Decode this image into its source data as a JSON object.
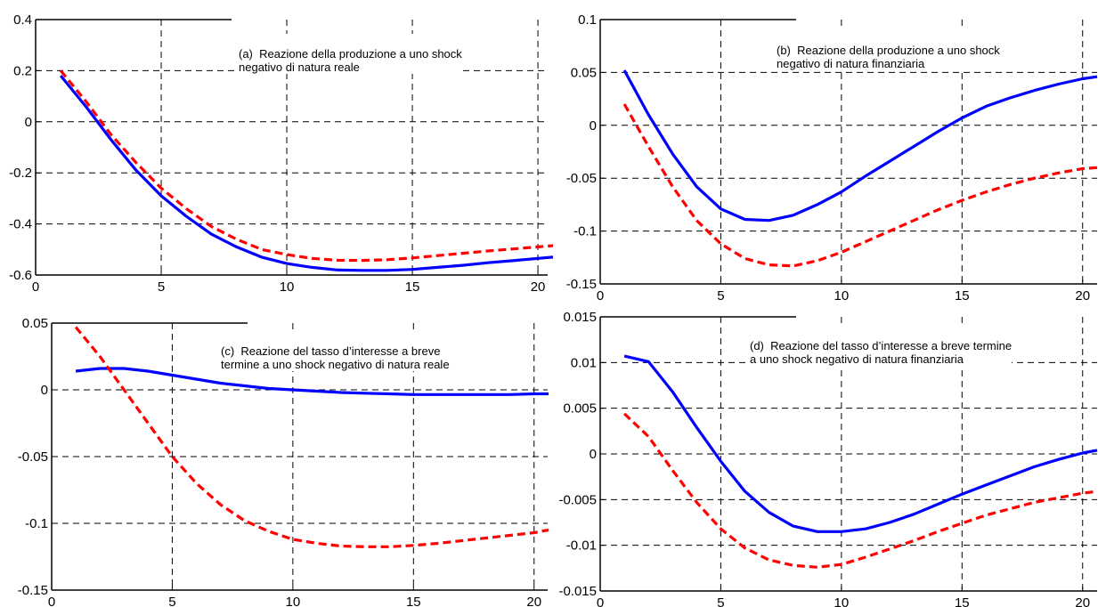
{
  "chart_data": [
    {
      "type": "line",
      "title_prefix": "(a)",
      "title": "Reazione della produzione a uno shock\nnegativo di natura reale",
      "xlim": [
        0,
        20.6
      ],
      "ylim": [
        -0.6,
        0.4
      ],
      "xticks": [
        0,
        5,
        10,
        15,
        20
      ],
      "xtick_labels": [
        "0",
        "5",
        "10",
        "15",
        "20"
      ],
      "yticks": [
        -0.6,
        -0.4,
        -0.2,
        0,
        0.2,
        0.4
      ],
      "ytick_labels": [
        "-0.6",
        "-0.4",
        "-0.2",
        "0",
        "0.2",
        "0.4"
      ],
      "grid": true,
      "series": [
        {
          "style": "solid",
          "color": "#0000ff",
          "x": [
            1,
            2,
            3,
            4,
            5,
            6,
            7,
            8,
            9,
            10,
            11,
            12,
            13,
            14,
            15,
            16,
            17,
            18,
            19,
            20,
            20.6
          ],
          "values": [
            0.18,
            0.06,
            -0.07,
            -0.19,
            -0.29,
            -0.37,
            -0.44,
            -0.49,
            -0.53,
            -0.555,
            -0.57,
            -0.58,
            -0.582,
            -0.582,
            -0.578,
            -0.57,
            -0.562,
            -0.552,
            -0.544,
            -0.535,
            -0.53
          ]
        },
        {
          "style": "dashed",
          "color": "#ff0000",
          "x": [
            1,
            2,
            3,
            4,
            5,
            6,
            7,
            8,
            9,
            10,
            11,
            12,
            13,
            14,
            15,
            16,
            17,
            18,
            19,
            20,
            20.6
          ],
          "values": [
            0.2,
            0.08,
            -0.05,
            -0.16,
            -0.26,
            -0.34,
            -0.41,
            -0.46,
            -0.5,
            -0.52,
            -0.535,
            -0.542,
            -0.543,
            -0.54,
            -0.533,
            -0.524,
            -0.515,
            -0.506,
            -0.498,
            -0.49,
            -0.485
          ]
        }
      ]
    },
    {
      "type": "line",
      "title_prefix": "(b)",
      "title": "Reazione della produzione a uno shock\nnegativo di natura finanziaria",
      "xlim": [
        0,
        20.6
      ],
      "ylim": [
        -0.15,
        0.1
      ],
      "xticks": [
        0,
        5,
        10,
        15,
        20
      ],
      "xtick_labels": [
        "0",
        "5",
        "10",
        "15",
        "20"
      ],
      "yticks": [
        -0.15,
        -0.1,
        -0.05,
        0,
        0.05,
        0.1
      ],
      "ytick_labels": [
        "-0.15",
        "-0.1",
        "-0.05",
        "0",
        "0.05",
        "0.1"
      ],
      "grid": true,
      "series": [
        {
          "style": "solid",
          "color": "#0000ff",
          "x": [
            1,
            2,
            3,
            4,
            5,
            6,
            7,
            8,
            9,
            10,
            11,
            12,
            13,
            14,
            15,
            16,
            17,
            18,
            19,
            20,
            20.6
          ],
          "values": [
            0.052,
            0.01,
            -0.027,
            -0.058,
            -0.079,
            -0.089,
            -0.09,
            -0.085,
            -0.075,
            -0.063,
            -0.048,
            -0.034,
            -0.02,
            -0.006,
            0.007,
            0.018,
            0.026,
            0.033,
            0.039,
            0.044,
            0.046
          ]
        },
        {
          "style": "dashed",
          "color": "#ff0000",
          "x": [
            1,
            2,
            3,
            4,
            5,
            6,
            7,
            8,
            9,
            10,
            11,
            12,
            13,
            14,
            15,
            16,
            17,
            18,
            19,
            20,
            20.6
          ],
          "values": [
            0.02,
            -0.02,
            -0.058,
            -0.09,
            -0.112,
            -0.126,
            -0.132,
            -0.133,
            -0.128,
            -0.12,
            -0.11,
            -0.1,
            -0.09,
            -0.08,
            -0.071,
            -0.063,
            -0.056,
            -0.05,
            -0.045,
            -0.041,
            -0.04
          ]
        }
      ]
    },
    {
      "type": "line",
      "title_prefix": "(c)",
      "title": "Reazione del tasso d’interesse a breve\ntermine a uno shock negativo di natura reale",
      "xlim": [
        0,
        20.6
      ],
      "ylim": [
        -0.15,
        0.05
      ],
      "xticks": [
        0,
        5,
        10,
        15,
        20
      ],
      "xtick_labels": [
        "0",
        "5",
        "10",
        "15",
        "20"
      ],
      "yticks": [
        -0.15,
        -0.1,
        -0.05,
        0,
        0.05
      ],
      "ytick_labels": [
        "-0.15",
        "-0.1",
        "-0.05",
        "0",
        "0.05"
      ],
      "grid": true,
      "series": [
        {
          "style": "solid",
          "color": "#0000ff",
          "x": [
            1,
            2,
            3,
            4,
            5,
            6,
            7,
            8,
            9,
            10,
            11,
            12,
            13,
            14,
            15,
            16,
            17,
            18,
            19,
            20,
            20.6
          ],
          "values": [
            0.014,
            0.016,
            0.016,
            0.014,
            0.011,
            0.008,
            0.005,
            0.003,
            0.001,
            0.0,
            -0.001,
            -0.002,
            -0.0025,
            -0.003,
            -0.0035,
            -0.0035,
            -0.0035,
            -0.0035,
            -0.0035,
            -0.003,
            -0.003
          ]
        },
        {
          "style": "dashed",
          "color": "#ff0000",
          "x": [
            1,
            2,
            3,
            4,
            5,
            6,
            7,
            8,
            9,
            10,
            11,
            12,
            13,
            14,
            15,
            16,
            17,
            18,
            19,
            20,
            20.6
          ],
          "values": [
            0.047,
            0.025,
            0.0,
            -0.025,
            -0.05,
            -0.07,
            -0.086,
            -0.098,
            -0.106,
            -0.112,
            -0.115,
            -0.117,
            -0.1175,
            -0.1175,
            -0.1165,
            -0.115,
            -0.113,
            -0.111,
            -0.109,
            -0.107,
            -0.105
          ]
        }
      ]
    },
    {
      "type": "line",
      "title_prefix": "(d)",
      "title": "Reazione del tasso d’interesse a breve termine\na uno shock negativo di natura finanziaria",
      "xlim": [
        0,
        20.6
      ],
      "ylim": [
        -0.015,
        0.015
      ],
      "xticks": [
        0,
        5,
        10,
        15,
        20
      ],
      "xtick_labels": [
        "0",
        "5",
        "10",
        "15",
        "20"
      ],
      "yticks": [
        -0.015,
        -0.01,
        -0.005,
        0,
        0.005,
        0.01,
        0.015
      ],
      "ytick_labels": [
        "-0.015",
        "-0.01",
        "-0.005",
        "0",
        "0.005",
        "0.01",
        "0.015"
      ],
      "grid": true,
      "series": [
        {
          "style": "solid",
          "color": "#0000ff",
          "x": [
            1,
            2,
            3,
            4,
            5,
            6,
            7,
            8,
            9,
            10,
            11,
            12,
            13,
            14,
            15,
            16,
            17,
            18,
            19,
            20,
            20.6
          ],
          "values": [
            0.0107,
            0.0101,
            0.0068,
            0.0029,
            -0.0008,
            -0.0041,
            -0.0064,
            -0.0079,
            -0.0085,
            -0.0085,
            -0.0082,
            -0.0075,
            -0.0066,
            -0.0055,
            -0.0044,
            -0.0034,
            -0.0024,
            -0.0014,
            -0.0006,
            0.0001,
            0.0004
          ]
        },
        {
          "style": "dashed",
          "color": "#ff0000",
          "x": [
            1,
            2,
            3,
            4,
            5,
            6,
            7,
            8,
            9,
            10,
            11,
            12,
            13,
            14,
            15,
            16,
            17,
            18,
            19,
            20,
            20.6
          ],
          "values": [
            0.0044,
            0.0019,
            -0.0018,
            -0.0053,
            -0.0082,
            -0.0103,
            -0.0116,
            -0.0122,
            -0.0124,
            -0.0121,
            -0.0113,
            -0.0104,
            -0.0095,
            -0.0085,
            -0.0076,
            -0.0067,
            -0.006,
            -0.0053,
            -0.0048,
            -0.0043,
            -0.0041
          ]
        }
      ]
    }
  ]
}
